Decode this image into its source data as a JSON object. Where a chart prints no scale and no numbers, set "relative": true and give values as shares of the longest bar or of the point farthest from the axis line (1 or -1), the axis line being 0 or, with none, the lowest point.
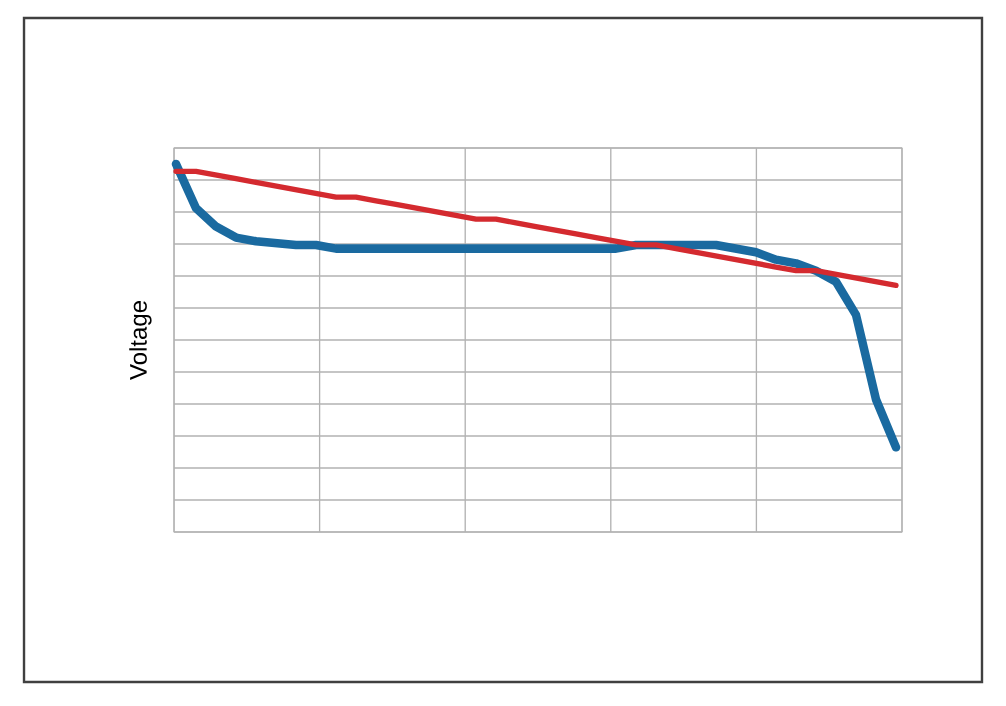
{
  "chart_data": {
    "type": "line",
    "ylabel": "Voltage",
    "relative": true,
    "grid": true,
    "marker": "none",
    "line_style": "solid",
    "categories": [
      null,
      null,
      null,
      null,
      null,
      null,
      null,
      null,
      null,
      null,
      null,
      null,
      null,
      null,
      null,
      null,
      null,
      null,
      null,
      null,
      null,
      null,
      null,
      null,
      null,
      null,
      null,
      null,
      null,
      null,
      null,
      null,
      null,
      null,
      null,
      null,
      null
    ],
    "series": [
      {
        "color": "#1a6aa0",
        "values": [
          1.0,
          0.88,
          0.83,
          0.8,
          0.79,
          0.785,
          0.78,
          0.78,
          0.77,
          0.77,
          0.77,
          0.77,
          0.77,
          0.77,
          0.77,
          0.77,
          0.77,
          0.77,
          0.77,
          0.77,
          0.77,
          0.77,
          0.77,
          0.78,
          0.78,
          0.78,
          0.78,
          0.78,
          0.77,
          0.76,
          0.74,
          0.73,
          0.71,
          0.68,
          0.59,
          0.36,
          0.23
        ]
      },
      {
        "color": "#d42a2f",
        "values": [
          0.98,
          0.98,
          0.97,
          0.96,
          0.95,
          0.94,
          0.93,
          0.92,
          0.91,
          0.91,
          0.9,
          0.89,
          0.88,
          0.87,
          0.86,
          0.85,
          0.85,
          0.84,
          0.83,
          0.82,
          0.81,
          0.8,
          0.79,
          0.78,
          0.78,
          0.77,
          0.76,
          0.75,
          0.74,
          0.73,
          0.72,
          0.71,
          0.71,
          0.7,
          0.69,
          0.68,
          0.67
        ]
      }
    ]
  }
}
